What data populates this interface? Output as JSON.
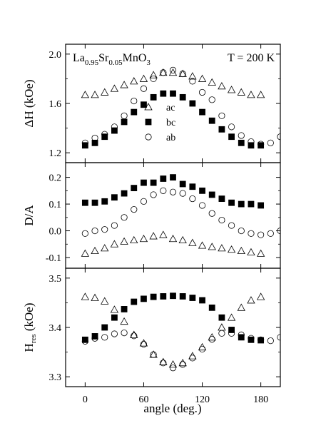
{
  "chart_data": {
    "type": "scatter",
    "xlabel": "angle (deg.)",
    "xlim": [
      -20,
      200
    ],
    "xticks": [
      0,
      60,
      120,
      180
    ],
    "panels": [
      {
        "id": "dH",
        "ylabel": {
          "main": "ΔH",
          "unit": "(kOe)"
        },
        "ylim": [
          1.12,
          2.08
        ],
        "yticks": [
          "1.2",
          "1.6",
          "2.0"
        ],
        "annotations": {
          "compound": {
            "parts": [
              [
                "La",
                "base"
              ],
              [
                "0.95",
                "sub"
              ],
              [
                "Sr",
                "base"
              ],
              [
                "0.05",
                "sub"
              ],
              [
                "MnO",
                "base"
              ],
              [
                "3",
                "sub"
              ]
            ]
          },
          "temperature": "T = 200 K"
        },
        "legend": [
          {
            "series": "ac",
            "label": "ac"
          },
          {
            "series": "bc",
            "label": "bc"
          },
          {
            "series": "ab",
            "label": "ab"
          }
        ],
        "series": [
          {
            "name": "ac",
            "marker": "triangle",
            "fill": "none",
            "x": [
              0,
              10,
              20,
              30,
              40,
              50,
              60,
              70,
              80,
              90,
              100,
              110,
              120,
              130,
              140,
              150,
              160,
              170,
              180
            ],
            "y": [
              1.67,
              1.67,
              1.69,
              1.72,
              1.75,
              1.78,
              1.8,
              1.83,
              1.85,
              1.85,
              1.84,
              1.82,
              1.8,
              1.77,
              1.74,
              1.71,
              1.69,
              1.67,
              1.67
            ]
          },
          {
            "name": "bc",
            "marker": "square",
            "fill": "#000000",
            "x": [
              0,
              10,
              20,
              30,
              40,
              50,
              60,
              70,
              80,
              90,
              100,
              110,
              120,
              130,
              140,
              150,
              160,
              170,
              180
            ],
            "y": [
              1.26,
              1.28,
              1.33,
              1.38,
              1.45,
              1.53,
              1.59,
              1.65,
              1.68,
              1.68,
              1.65,
              1.6,
              1.53,
              1.46,
              1.39,
              1.33,
              1.28,
              1.26,
              1.26
            ]
          },
          {
            "name": "ab",
            "marker": "circle",
            "fill": "none",
            "x": [
              0,
              10,
              20,
              30,
              40,
              50,
              60,
              70,
              80,
              90,
              100,
              110,
              120,
              130,
              140,
              150,
              160,
              170,
              180,
              190,
              200
            ],
            "y": [
              1.28,
              1.32,
              1.35,
              1.41,
              1.5,
              1.62,
              1.72,
              1.8,
              1.85,
              1.87,
              1.84,
              1.78,
              1.69,
              1.63,
              1.5,
              1.41,
              1.34,
              1.29,
              1.27,
              1.28,
              1.33
            ]
          }
        ]
      },
      {
        "id": "DA",
        "ylabel": {
          "main": "D/A",
          "unit": ""
        },
        "ylim": [
          -0.14,
          0.255
        ],
        "yticks": [
          "-0.1",
          "0.0",
          "0.1",
          "0.2"
        ],
        "series": [
          {
            "name": "ac",
            "marker": "triangle",
            "fill": "none",
            "x": [
              0,
              10,
              20,
              30,
              40,
              50,
              60,
              70,
              80,
              90,
              100,
              110,
              120,
              130,
              140,
              150,
              160,
              170,
              180
            ],
            "y": [
              -0.085,
              -0.075,
              -0.065,
              -0.05,
              -0.04,
              -0.035,
              -0.03,
              -0.02,
              -0.015,
              -0.03,
              -0.035,
              -0.045,
              -0.055,
              -0.06,
              -0.065,
              -0.07,
              -0.075,
              -0.08,
              -0.085
            ]
          },
          {
            "name": "bc",
            "marker": "square",
            "fill": "#000000",
            "x": [
              0,
              10,
              20,
              30,
              40,
              50,
              60,
              70,
              80,
              90,
              100,
              110,
              120,
              130,
              140,
              150,
              160,
              170,
              180
            ],
            "y": [
              0.105,
              0.105,
              0.11,
              0.125,
              0.14,
              0.16,
              0.18,
              0.18,
              0.195,
              0.2,
              0.175,
              0.165,
              0.15,
              0.135,
              0.12,
              0.105,
              0.1,
              0.1,
              0.095
            ]
          },
          {
            "name": "ab",
            "marker": "circle",
            "fill": "none",
            "x": [
              0,
              10,
              20,
              30,
              40,
              50,
              60,
              70,
              80,
              90,
              100,
              110,
              120,
              130,
              140,
              150,
              160,
              170,
              180,
              190,
              200
            ],
            "y": [
              -0.01,
              0.0,
              0.005,
              0.02,
              0.05,
              0.08,
              0.11,
              0.135,
              0.15,
              0.145,
              0.14,
              0.12,
              0.095,
              0.065,
              0.04,
              0.02,
              0.0,
              -0.01,
              -0.015,
              -0.01,
              0.0
            ]
          }
        ]
      },
      {
        "id": "Hres",
        "ylabel": {
          "main": "H",
          "sub": "res",
          "unit": "(kOe)"
        },
        "ylim": [
          3.28,
          3.52
        ],
        "yticks": [
          "3.3",
          "3.4",
          "3.5"
        ],
        "series": [
          {
            "name": "ac",
            "marker": "triangle",
            "fill": "none",
            "x": [
              0,
              10,
              20,
              30,
              40,
              50,
              60,
              70,
              80,
              90,
              100,
              110,
              120,
              130,
              140,
              150,
              160,
              170,
              180
            ],
            "y": [
              3.462,
              3.46,
              3.453,
              3.436,
              3.412,
              3.385,
              3.368,
              3.345,
              3.33,
              3.325,
              3.328,
              3.342,
              3.36,
              3.38,
              3.4,
              3.42,
              3.44,
              3.455,
              3.462
            ]
          },
          {
            "name": "bc",
            "marker": "square",
            "fill": "#000000",
            "x": [
              0,
              10,
              20,
              30,
              40,
              50,
              60,
              70,
              80,
              90,
              100,
              110,
              120,
              130,
              140,
              150,
              160,
              170,
              180
            ],
            "y": [
              3.375,
              3.382,
              3.4,
              3.42,
              3.437,
              3.452,
              3.458,
              3.462,
              3.463,
              3.464,
              3.463,
              3.46,
              3.455,
              3.44,
              3.42,
              3.395,
              3.38,
              3.375,
              3.374
            ]
          },
          {
            "name": "ab",
            "marker": "circle",
            "fill": "none",
            "x": [
              0,
              10,
              20,
              30,
              40,
              50,
              60,
              70,
              80,
              90,
              100,
              110,
              120,
              130,
              140,
              150,
              160,
              170,
              180,
              190,
              200
            ],
            "y": [
              3.372,
              3.378,
              3.38,
              3.387,
              3.389,
              3.383,
              3.366,
              3.345,
              3.328,
              3.318,
              3.325,
              3.338,
              3.356,
              3.376,
              3.388,
              3.388,
              3.385,
              3.378,
              3.375,
              3.373,
              3.38
            ]
          }
        ]
      }
    ]
  }
}
